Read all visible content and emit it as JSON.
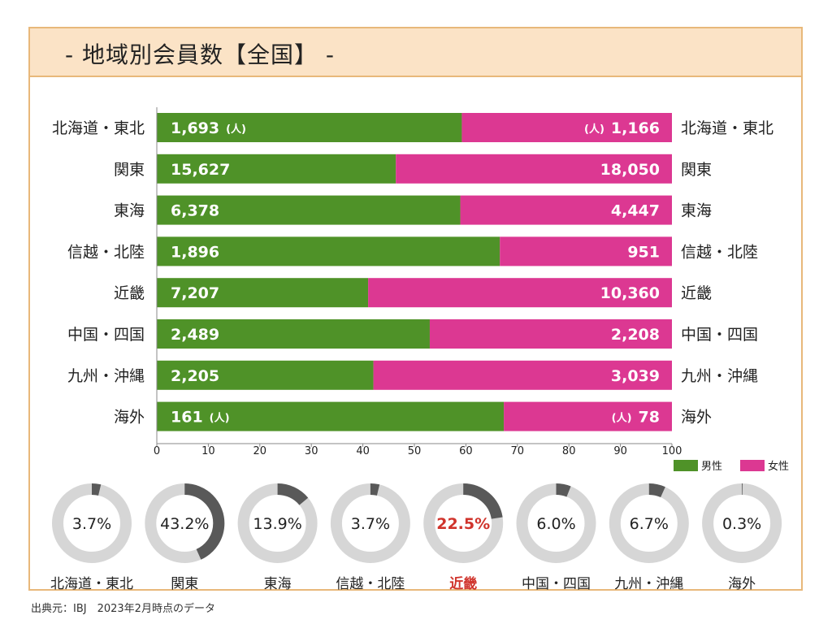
{
  "title": "- 地域別会員数【全国】 -",
  "source": "出典元：IBJ　2023年2月時点のデータ",
  "colors": {
    "male": "#4f9228",
    "female": "#dc3892",
    "donut_track": "#d6d6d6",
    "donut_fill": "#595959",
    "highlight": "#d0342c"
  },
  "chart_data": [
    {
      "type": "bar",
      "orientation": "horizontal",
      "stacked": "percent",
      "categories": [
        "北海道・東北",
        "関東",
        "東海",
        "信越・北陸",
        "近畿",
        "中国・四国",
        "九州・沖縄",
        "海外"
      ],
      "series": [
        {
          "name": "男性",
          "values": [
            1693,
            15627,
            6378,
            1896,
            7207,
            2489,
            2205,
            161
          ]
        },
        {
          "name": "女性",
          "values": [
            1166,
            18050,
            4447,
            951,
            10360,
            2208,
            3039,
            78
          ]
        }
      ],
      "value_labels": {
        "男性": [
          "1,693",
          "15,627",
          "6,378",
          "1,896",
          "7,207",
          "2,489",
          "2,205",
          "161"
        ],
        "女性": [
          "1,166",
          "18,050",
          "4,447",
          "951",
          "10,360",
          "2,208",
          "3,039",
          "78"
        ]
      },
      "unit_label": "(人)",
      "x_ticks": [
        0,
        10,
        20,
        30,
        40,
        50,
        60,
        70,
        80,
        90,
        100
      ],
      "xlim": [
        0,
        100
      ],
      "legend": "bottom-right"
    },
    {
      "type": "donut",
      "categories": [
        "北海道・東北",
        "関東",
        "東海",
        "信越・北陸",
        "近畿",
        "中国・四国",
        "九州・沖縄",
        "海外"
      ],
      "values": [
        3.7,
        43.2,
        13.9,
        3.7,
        22.5,
        6.0,
        6.7,
        0.3
      ],
      "labels": [
        "3.7%",
        "43.2%",
        "13.9%",
        "3.7%",
        "22.5%",
        "6.0%",
        "6.7%",
        "0.3%"
      ],
      "highlight": "近畿"
    }
  ]
}
